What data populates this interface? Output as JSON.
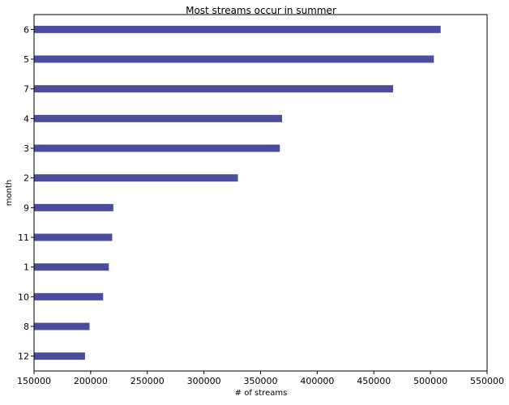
{
  "chart_data": {
    "type": "bar",
    "orientation": "horizontal",
    "title": "Most streams occur in summer",
    "xlabel": "# of streams",
    "ylabel": "month",
    "categories": [
      "6",
      "5",
      "7",
      "4",
      "3",
      "2",
      "9",
      "11",
      "1",
      "10",
      "8",
      "12"
    ],
    "values": [
      509000,
      503000,
      467000,
      369000,
      367000,
      330000,
      220000,
      219000,
      216000,
      211000,
      199000,
      195000
    ],
    "xlim": [
      150000,
      550000
    ],
    "xticks": [
      150000,
      200000,
      250000,
      300000,
      350000,
      400000,
      450000,
      500000,
      550000
    ],
    "xtick_labels": [
      "150000",
      "200000",
      "250000",
      "300000",
      "350000",
      "400000",
      "450000",
      "500000",
      "550000"
    ],
    "bar_color": "#4c4c9f",
    "grid": false,
    "legend": "none"
  }
}
